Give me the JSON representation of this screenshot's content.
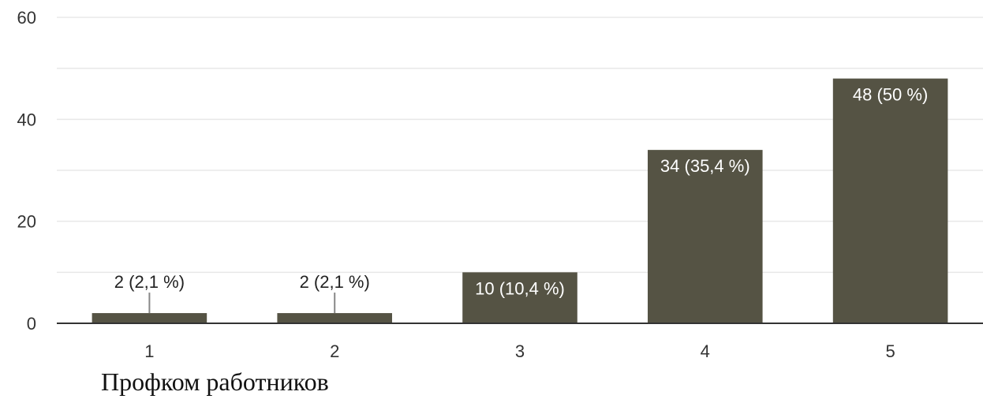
{
  "caption": "Профком работников",
  "chart_data": {
    "type": "bar",
    "categories": [
      "1",
      "2",
      "3",
      "4",
      "5"
    ],
    "values": [
      2,
      2,
      10,
      34,
      48
    ],
    "data_labels": [
      "2 (2,1 %)",
      "2 (2,1 %)",
      "10 (10,4 %)",
      "34 (35,4 %)",
      "48 (50 %)"
    ],
    "ylim": [
      0,
      60
    ],
    "yticks": [
      0,
      20,
      40,
      60
    ],
    "grid": true,
    "title": "",
    "xlabel": "",
    "ylabel": "",
    "colors": {
      "bar": "#555344",
      "gridline": "#e8e8e8",
      "axis": "#333333",
      "outside_label": "#222222",
      "inside_label": "#ffffff"
    }
  }
}
